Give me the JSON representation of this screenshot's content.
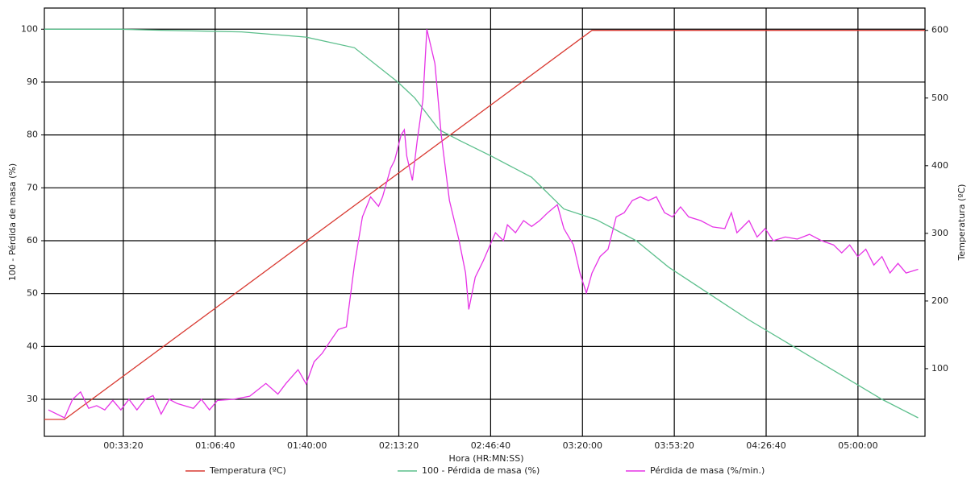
{
  "chart_data": {
    "type": "line",
    "x_label": "Hora (HR:MN:SS)",
    "y_label": "100 - Pérdida de masa (%)",
    "y2_label": "Temperatura (ºC)",
    "xlim": [
      280,
      19460
    ],
    "xticks": [
      {
        "value": 2000,
        "label": "00:33:20"
      },
      {
        "value": 4000,
        "label": "01:06:40"
      },
      {
        "value": 6000,
        "label": "01:40:00"
      },
      {
        "value": 8000,
        "label": "02:13:20"
      },
      {
        "value": 10000,
        "label": "02:46:40"
      },
      {
        "value": 12000,
        "label": "03:20:00"
      },
      {
        "value": 14000,
        "label": "03:53:20"
      },
      {
        "value": 16000,
        "label": "04:26:40"
      },
      {
        "value": 18000,
        "label": "05:00:00"
      }
    ],
    "ylim": [
      23,
      104
    ],
    "yticks": [
      30,
      40,
      50,
      60,
      70,
      80,
      90,
      100
    ],
    "y2lim": [
      0,
      633
    ],
    "y2ticks": [
      100,
      200,
      300,
      400,
      500,
      600
    ],
    "grid": true,
    "legend": "bottom",
    "series": [
      {
        "name": "Temperatura (ºC)",
        "color": "#d93a32",
        "axis": "y2",
        "x": [
          280,
          719,
          12207,
          19460
        ],
        "values": [
          25,
          25,
          600,
          600
        ]
      },
      {
        "name": "100 - Pérdida de masa (%)",
        "color": "#5cbf8c",
        "x": [
          280,
          1946,
          2823,
          4577,
          5981,
          7033,
          7980,
          8348,
          8875,
          9313,
          10015,
          10892,
          11594,
          12295,
          13172,
          13874,
          14751,
          15628,
          16592,
          17557,
          18522,
          19311
        ],
        "values": [
          100,
          100,
          99.8,
          99.5,
          98.5,
          96.5,
          90,
          87,
          81,
          79,
          76,
          72,
          66,
          64,
          60,
          55,
          50,
          45,
          40,
          35,
          30,
          26.5
        ]
      },
      {
        "name": "Pérdida de masa (%/min.)",
        "color": "#e633e6",
        "x": [
          368,
          719,
          894,
          1069,
          1245,
          1420,
          1596,
          1771,
          1946,
          2122,
          2297,
          2473,
          2648,
          2823,
          2999,
          3174,
          3525,
          3700,
          3876,
          4051,
          4402,
          4753,
          5104,
          5367,
          5542,
          5805,
          5981,
          6156,
          6331,
          6507,
          6682,
          6858,
          7033,
          7208,
          7384,
          7559,
          7647,
          7822,
          7910,
          8050,
          8120,
          8173,
          8296,
          8401,
          8524,
          8611,
          8787,
          8927,
          9103,
          9313,
          9453,
          9524,
          9664,
          9840,
          10103,
          10278,
          10366,
          10541,
          10717,
          10892,
          11068,
          11243,
          11453,
          11594,
          11804,
          11944,
          12084,
          12207,
          12383,
          12558,
          12734,
          12909,
          13084,
          13260,
          13435,
          13610,
          13786,
          13961,
          14137,
          14312,
          14575,
          14838,
          15101,
          15242,
          15364,
          15628,
          15803,
          15979,
          16154,
          16417,
          16680,
          16943,
          17206,
          17469,
          17645,
          17820,
          17995,
          18171,
          18346,
          18522,
          18697,
          18872,
          19048,
          19311
        ],
        "values": [
          28,
          26.5,
          30,
          31.4,
          28.3,
          28.8,
          28,
          29.8,
          28,
          30,
          28,
          30,
          30.7,
          27.2,
          30,
          29.2,
          28.3,
          30,
          28,
          29.8,
          30,
          30.6,
          33,
          31,
          33,
          35.6,
          32.9,
          37.1,
          38.7,
          41,
          43.2,
          43.7,
          55.4,
          64.5,
          68.3,
          66.5,
          68.3,
          73.7,
          75.2,
          80,
          81,
          76,
          71.4,
          79,
          86.6,
          100,
          93.5,
          79.8,
          67.6,
          60,
          53.9,
          47,
          53.1,
          56.2,
          61.5,
          60,
          63,
          61.5,
          63.8,
          62.7,
          63.8,
          65.3,
          66.8,
          62.3,
          59.2,
          53.9,
          50.1,
          53.9,
          57,
          58.4,
          64.5,
          65.3,
          67.6,
          68.3,
          67.6,
          68.3,
          65.3,
          64.5,
          66.4,
          64.5,
          63.8,
          62.6,
          62.3,
          65.3,
          61.5,
          63.8,
          60.7,
          62.3,
          60,
          60.7,
          60.3,
          61.2,
          60,
          59.2,
          57.7,
          59.2,
          57,
          58.4,
          55.4,
          57,
          53.9,
          55.7,
          53.9,
          54.6
        ]
      }
    ]
  }
}
